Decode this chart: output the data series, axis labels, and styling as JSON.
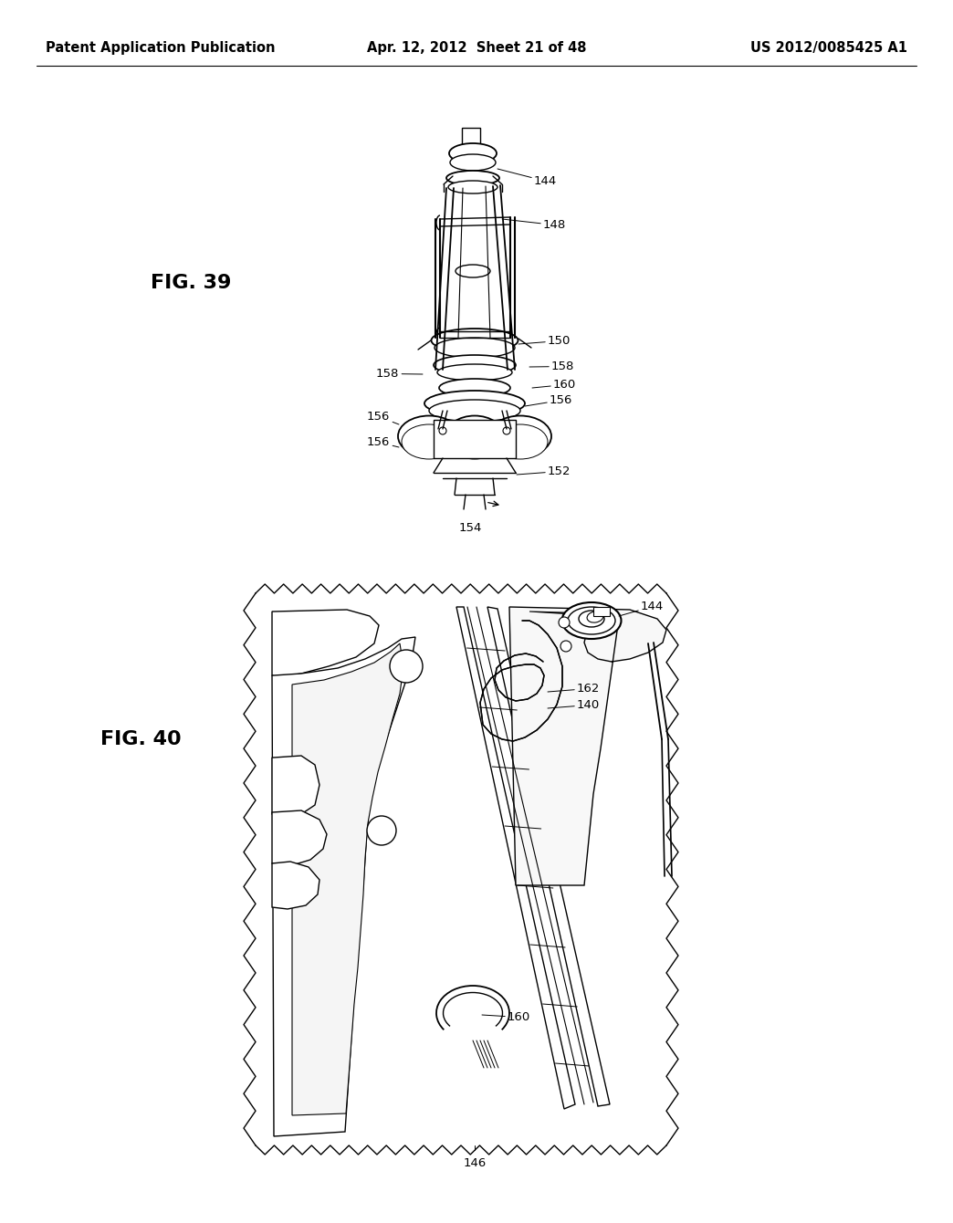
{
  "background_color": "#ffffff",
  "header": {
    "left_text": "Patent Application Publication",
    "center_text": "Apr. 12, 2012  Sheet 21 of 48",
    "right_text": "US 2012/0085425 A1",
    "font_size": 10.5,
    "font_weight": "bold"
  },
  "line_color": "#000000",
  "line_width": 1.0,
  "annotation_fontsize": 9.5,
  "fig39_label": "FIG. 39",
  "fig40_label": "FIG. 40"
}
